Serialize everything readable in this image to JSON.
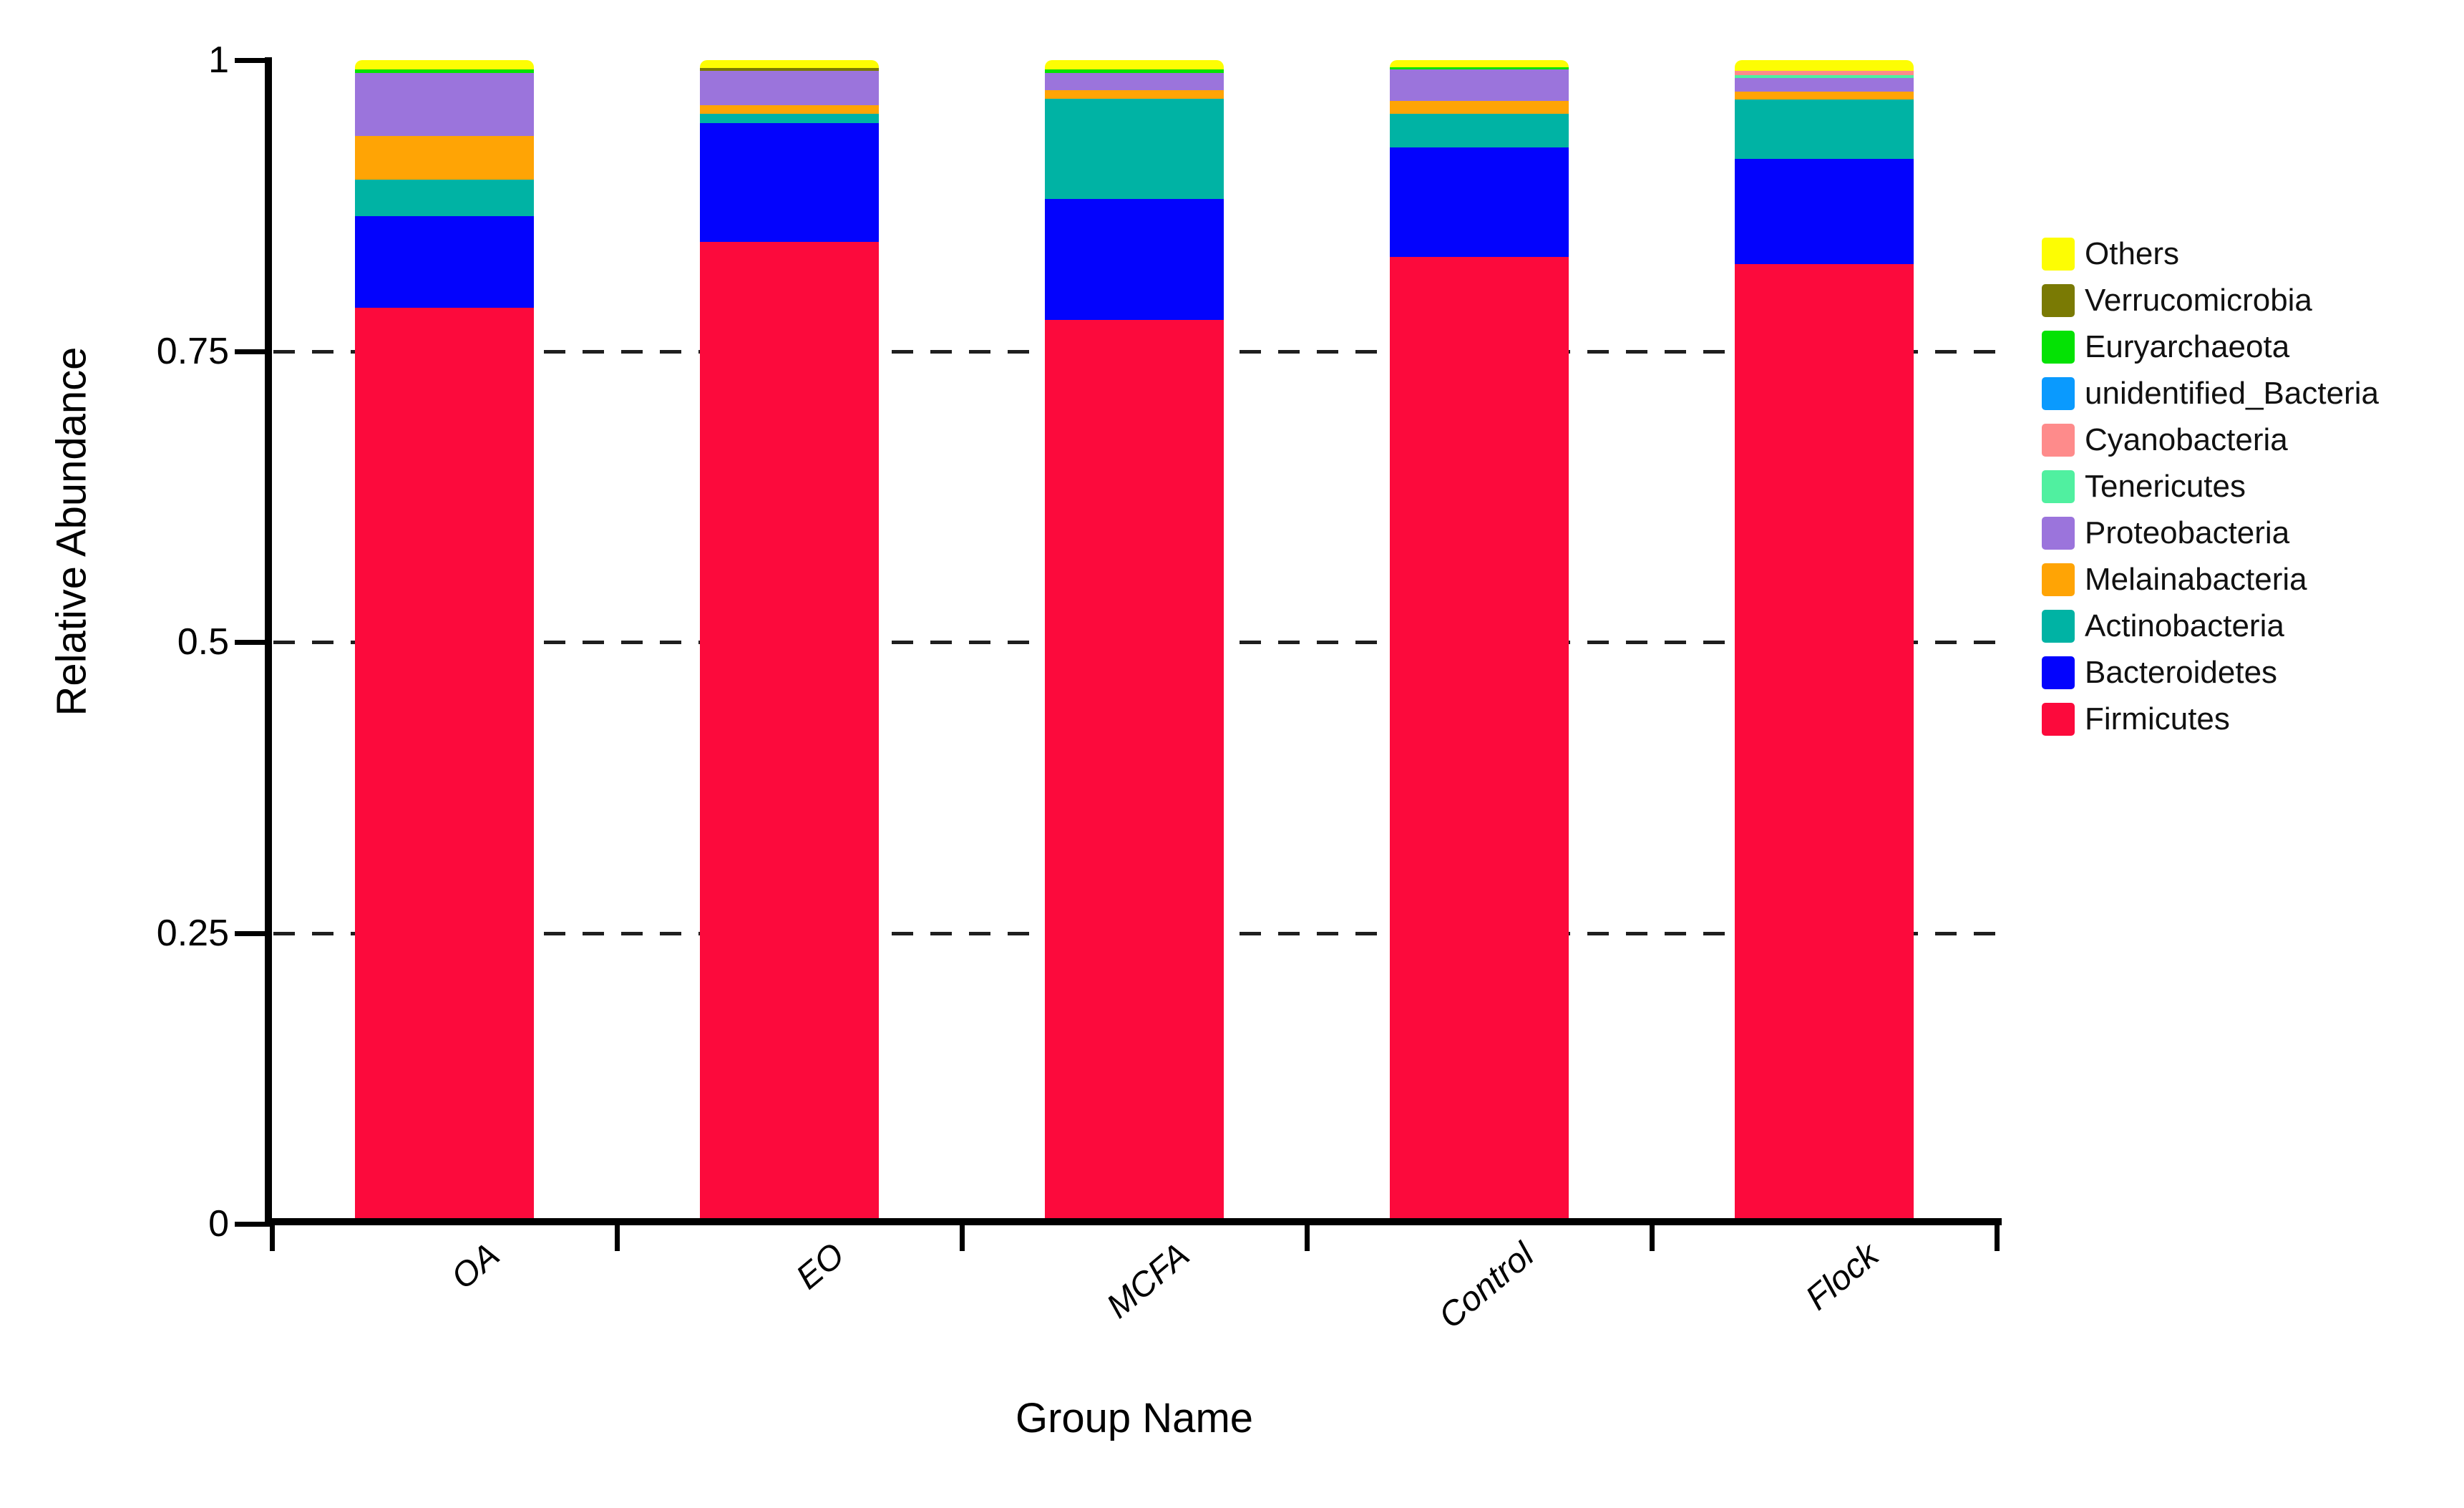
{
  "chart_data": {
    "type": "stacked_bar",
    "title": "",
    "xlabel": "Group Name",
    "ylabel": "Relative Abundance",
    "ylim": [
      0,
      1
    ],
    "yticks": [
      0,
      0.25,
      0.5,
      0.75,
      1
    ],
    "ytick_labels": [
      "0",
      "0.25",
      "0.5",
      "0.75",
      "1"
    ],
    "gridlines_at": [
      0.25,
      0.5,
      0.75
    ],
    "grid_style": "dashed",
    "legend_position": "right",
    "legend_order_top_to_bottom": [
      "Others",
      "Verrucomicrobia",
      "Euryarchaeota",
      "unidentified_Bacteria",
      "Cyanobacteria",
      "Tenericutes",
      "Proteobacteria",
      "Melainabacteria",
      "Actinobacteria",
      "Bacteroidetes",
      "Firmicutes"
    ],
    "categories": [
      "OA",
      "EO",
      "MCFA",
      "Control",
      "Flock"
    ],
    "series": [
      {
        "name": "Firmicutes",
        "color": "#FC0A3C",
        "values": [
          0.787,
          0.844,
          0.777,
          0.831,
          0.825
        ]
      },
      {
        "name": "Bacteroidetes",
        "color": "#0303FD",
        "values": [
          0.079,
          0.102,
          0.104,
          0.094,
          0.09
        ]
      },
      {
        "name": "Actinobacteria",
        "color": "#00B3A4",
        "values": [
          0.031,
          0.008,
          0.086,
          0.029,
          0.051
        ]
      },
      {
        "name": "Melainabacteria",
        "color": "#FFA405",
        "values": [
          0.038,
          0.007,
          0.007,
          0.011,
          0.007
        ]
      },
      {
        "name": "Proteobacteria",
        "color": "#9B74DC",
        "values": [
          0.054,
          0.03,
          0.015,
          0.027,
          0.012
        ]
      },
      {
        "name": "Tenericutes",
        "color": "#50F0A0",
        "values": [
          0.0,
          0.0,
          0.0,
          0.0,
          0.002
        ]
      },
      {
        "name": "Cyanobacteria",
        "color": "#FE8B8B",
        "values": [
          0.0,
          0.0,
          0.0,
          0.0,
          0.004
        ]
      },
      {
        "name": "unidentified_Bacteria",
        "color": "#0A9AFE",
        "values": [
          0.0,
          0.0,
          0.0,
          0.0,
          0.0
        ]
      },
      {
        "name": "Euryarchaeota",
        "color": "#04E204",
        "values": [
          0.003,
          0.0,
          0.003,
          0.002,
          0.0
        ]
      },
      {
        "name": "Verrucomicrobia",
        "color": "#7A7A04",
        "values": [
          0.0,
          0.002,
          0.0,
          0.0,
          0.0
        ]
      },
      {
        "name": "Others",
        "color": "#FDFD03",
        "values": [
          0.008,
          0.007,
          0.008,
          0.006,
          0.009
        ]
      }
    ],
    "axis_color": "#000000",
    "gridline_color": "#1f1f1f",
    "background_color": "#ffffff"
  }
}
